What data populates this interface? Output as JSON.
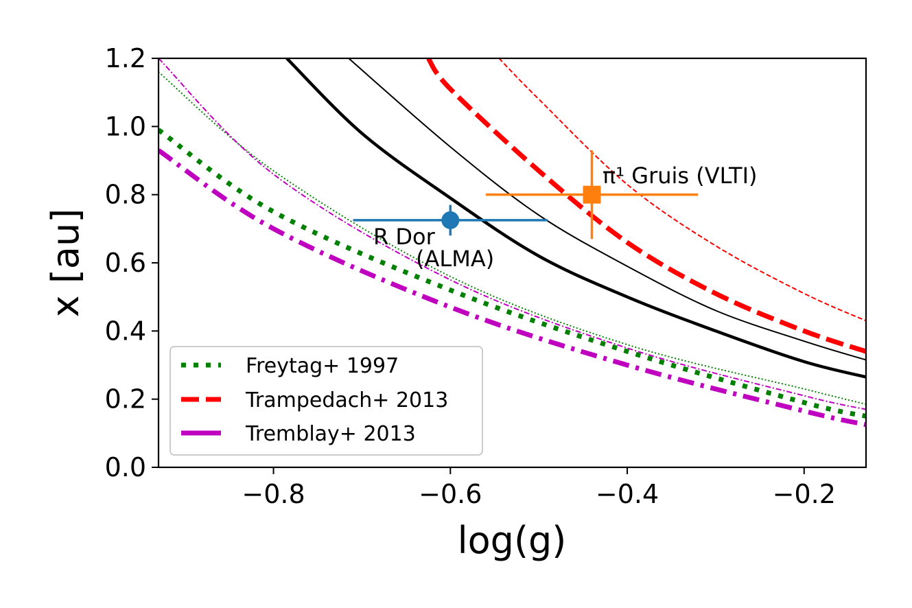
{
  "chart_data": {
    "type": "line",
    "xlabel": "log(g)",
    "ylabel": "x [au]",
    "xlim": [
      -0.93,
      -0.13
    ],
    "ylim": [
      0.0,
      1.2
    ],
    "xticks": [
      -0.8,
      -0.6,
      -0.4,
      -0.2
    ],
    "xtick_labels": [
      "−0.8",
      "−0.6",
      "−0.4",
      "−0.2"
    ],
    "yticks": [
      0.0,
      0.2,
      0.4,
      0.6,
      0.8,
      1.0,
      1.2
    ],
    "ytick_labels": [
      "0.0",
      "0.2",
      "0.4",
      "0.6",
      "0.8",
      "1.0",
      "1.2"
    ],
    "grid": false,
    "legend_position": "lower-left",
    "series": [
      {
        "name": "Freytag+ 1997",
        "color": "#008000",
        "style": "dotted",
        "weight": "thick",
        "x": [
          -0.93,
          -0.8,
          -0.6,
          -0.4,
          -0.2,
          -0.13
        ],
        "y": [
          0.99,
          0.75,
          0.52,
          0.34,
          0.19,
          0.15
        ]
      },
      {
        "name": "",
        "color": "#008000",
        "style": "dotted",
        "weight": "thin",
        "x": [
          -0.93,
          -0.8,
          -0.6,
          -0.4,
          -0.2,
          -0.13
        ],
        "y": [
          1.16,
          0.87,
          0.56,
          0.36,
          0.23,
          0.185
        ]
      },
      {
        "name": "Trampedach+ 2013",
        "color": "#ff0000",
        "style": "dashed",
        "weight": "thick",
        "x": [
          -0.625,
          -0.6,
          -0.5,
          -0.4,
          -0.3,
          -0.2,
          -0.13
        ],
        "y": [
          1.2,
          1.11,
          0.87,
          0.66,
          0.51,
          0.4,
          0.34
        ]
      },
      {
        "name": "",
        "color": "#ff0000",
        "style": "dashed",
        "weight": "thin",
        "x": [
          -0.545,
          -0.5,
          -0.4,
          -0.3,
          -0.2,
          -0.13
        ],
        "y": [
          1.2,
          1.08,
          0.83,
          0.65,
          0.51,
          0.43
        ]
      },
      {
        "name": "Tremblay+ 2013",
        "color": "#bf00bf",
        "style": "dashdot",
        "weight": "thick",
        "x": [
          -0.93,
          -0.8,
          -0.6,
          -0.4,
          -0.2,
          -0.13
        ],
        "y": [
          0.93,
          0.7,
          0.47,
          0.3,
          0.165,
          0.125
        ]
      },
      {
        "name": "",
        "color": "#bf00bf",
        "style": "dashdot",
        "weight": "thin",
        "x": [
          -0.93,
          -0.8,
          -0.6,
          -0.4,
          -0.2,
          -0.13
        ],
        "y": [
          1.2,
          0.86,
          0.55,
          0.35,
          0.21,
          0.17
        ]
      },
      {
        "name": "",
        "color": "#000000",
        "style": "solid",
        "weight": "thick",
        "x": [
          -0.785,
          -0.7,
          -0.6,
          -0.5,
          -0.4,
          -0.3,
          -0.2,
          -0.13
        ],
        "y": [
          1.2,
          0.98,
          0.79,
          0.62,
          0.5,
          0.4,
          0.31,
          0.265
        ]
      },
      {
        "name": "",
        "color": "#000000",
        "style": "solid",
        "weight": "thin",
        "x": [
          -0.715,
          -0.6,
          -0.5,
          -0.4,
          -0.3,
          -0.2,
          -0.13
        ],
        "y": [
          1.2,
          0.94,
          0.74,
          0.59,
          0.46,
          0.37,
          0.315
        ]
      }
    ],
    "points": [
      {
        "label": "R Dor",
        "label2": "(ALMA)",
        "color": "#1f77b4",
        "marker": "circle",
        "x": -0.6,
        "y": 0.725,
        "xerr": [
          0.11,
          0.11
        ],
        "yerr": [
          0.045,
          0.045
        ]
      },
      {
        "label": "π¹ Gruis (VLTI)",
        "color": "#ff7f0e",
        "marker": "square",
        "x": -0.44,
        "y": 0.8,
        "xerr": [
          0.12,
          0.12
        ],
        "yerr": [
          0.13,
          0.13
        ]
      }
    ]
  }
}
